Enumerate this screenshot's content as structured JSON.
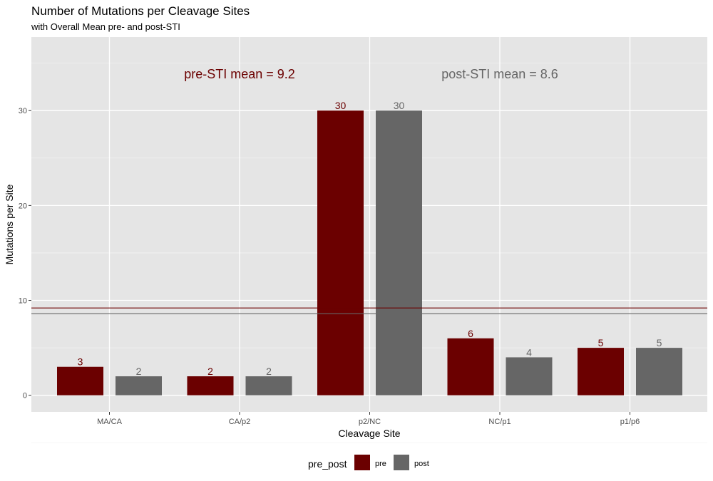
{
  "chart_data": {
    "type": "bar",
    "title": "Number of Mutations per Cleavage Sites",
    "subtitle": "with Overall Mean pre- and post-STI",
    "xlabel": "Cleavage Site",
    "ylabel": "Mutations per Site",
    "categories": [
      "MA/CA",
      "CA/p2",
      "p2/NC",
      "NC/p1",
      "p1/p6"
    ],
    "series": [
      {
        "name": "pre",
        "color": "#6b0000",
        "values": [
          3,
          2,
          30,
          6,
          5
        ]
      },
      {
        "name": "post",
        "color": "#666666",
        "values": [
          2,
          2,
          30,
          4,
          5
        ]
      }
    ],
    "ylim": [
      -1.75,
      37.75
    ],
    "yticks": [
      0,
      10,
      20,
      30
    ],
    "grid": true,
    "hlines": [
      {
        "series": "pre",
        "value": 9.2,
        "label": "pre-STI mean = 9.2",
        "color": "#6b0000"
      },
      {
        "series": "post",
        "value": 8.6,
        "label": "post-STI mean = 8.6",
        "color": "#666666"
      }
    ],
    "legend": {
      "title": "pre_post",
      "position": "bottom"
    }
  }
}
